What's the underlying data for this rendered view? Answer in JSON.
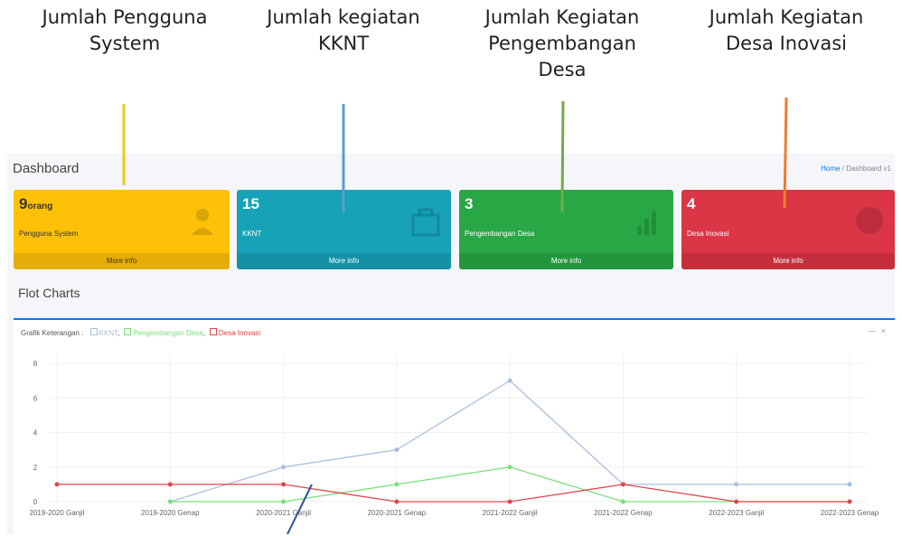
{
  "annotations": [
    "Jumlah Pengguna System",
    "Jumlah kegiatan KKNT",
    "Jumlah Kegiatan Pengembangan Desa",
    "Jumlah Kegiatan Desa Inovasi"
  ],
  "header": {
    "title": "Dashboard",
    "breadcrumb": [
      "Home",
      "Dashboard v1"
    ],
    "breadcrumb_separator": "/"
  },
  "cards": [
    {
      "value": "9",
      "unit": "orang",
      "label": "Pengguna System",
      "link": "More info"
    },
    {
      "value": "15",
      "unit": "",
      "label": "KKNT",
      "link": "More info"
    },
    {
      "value": "3",
      "unit": "",
      "label": "Pengembangan Desa",
      "link": "More info"
    },
    {
      "value": "4",
      "unit": "",
      "label": "Desa Inovasi",
      "link": "More info"
    }
  ],
  "section_title": "Flot Charts",
  "chart_data": {
    "type": "line",
    "title": "Grafik Keterangan :",
    "legend_separator": ",",
    "categories": [
      "2019-2020 Ganjil",
      "2019-2020 Genap",
      "2020-2021 Ganjil",
      "2020-2021 Genap",
      "2021-2022 Ganjil",
      "2021-2022 Genap",
      "2022-2023 Ganjil",
      "2022-2023 Genap"
    ],
    "series": [
      {
        "name": "KKNT",
        "color": "#a9bfe0",
        "values": [
          null,
          0,
          2,
          3,
          7,
          1,
          1,
          1
        ]
      },
      {
        "name": "Pengembangan Desa",
        "color": "#7be07b",
        "values": [
          null,
          0,
          0,
          1,
          2,
          0,
          0,
          0
        ]
      },
      {
        "name": "Desa Inovasi",
        "color": "#e0474c",
        "values": [
          1,
          1,
          1,
          0,
          0,
          1,
          0,
          0
        ]
      }
    ],
    "ylim": [
      0,
      8
    ],
    "yticks": [
      0,
      2,
      4,
      6,
      8
    ],
    "grid": true
  }
}
